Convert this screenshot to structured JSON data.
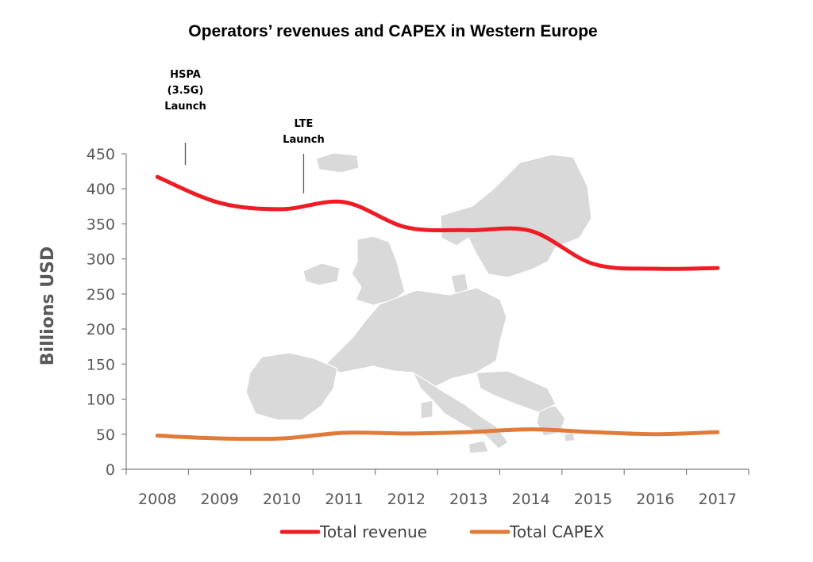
{
  "chart_data": {
    "type": "line",
    "title": "Operators’ revenues and CAPEX in Western Europe",
    "ylabel": "Billions USD",
    "xlabel": "",
    "ylim": [
      0,
      450
    ],
    "yticks": [
      0,
      50,
      100,
      150,
      200,
      250,
      300,
      350,
      400,
      450
    ],
    "categories": [
      "2008",
      "2009",
      "2010",
      "2011",
      "2012",
      "2013",
      "2014",
      "2015",
      "2016",
      "2017"
    ],
    "series": [
      {
        "name": "Total revenue",
        "color": "#ee1c25",
        "values": [
          417,
          380,
          371,
          381,
          345,
          341,
          340,
          293,
          286,
          287
        ]
      },
      {
        "name": "Total CAPEX",
        "color": "#e07b39",
        "values": [
          48,
          44,
          44,
          52,
          51,
          53,
          57,
          53,
          50,
          53
        ]
      }
    ],
    "annotations": [
      {
        "lines": [
          "HSPA",
          "(3.5G)",
          "Launch"
        ],
        "x": 2008.45
      },
      {
        "lines": [
          "LTE",
          "Launch"
        ],
        "x": 2010.35
      }
    ],
    "legend": {
      "position": "bottom",
      "entries": [
        "Total revenue",
        "Total CAPEX"
      ]
    },
    "background_image": "western-europe-map",
    "grid": false
  }
}
